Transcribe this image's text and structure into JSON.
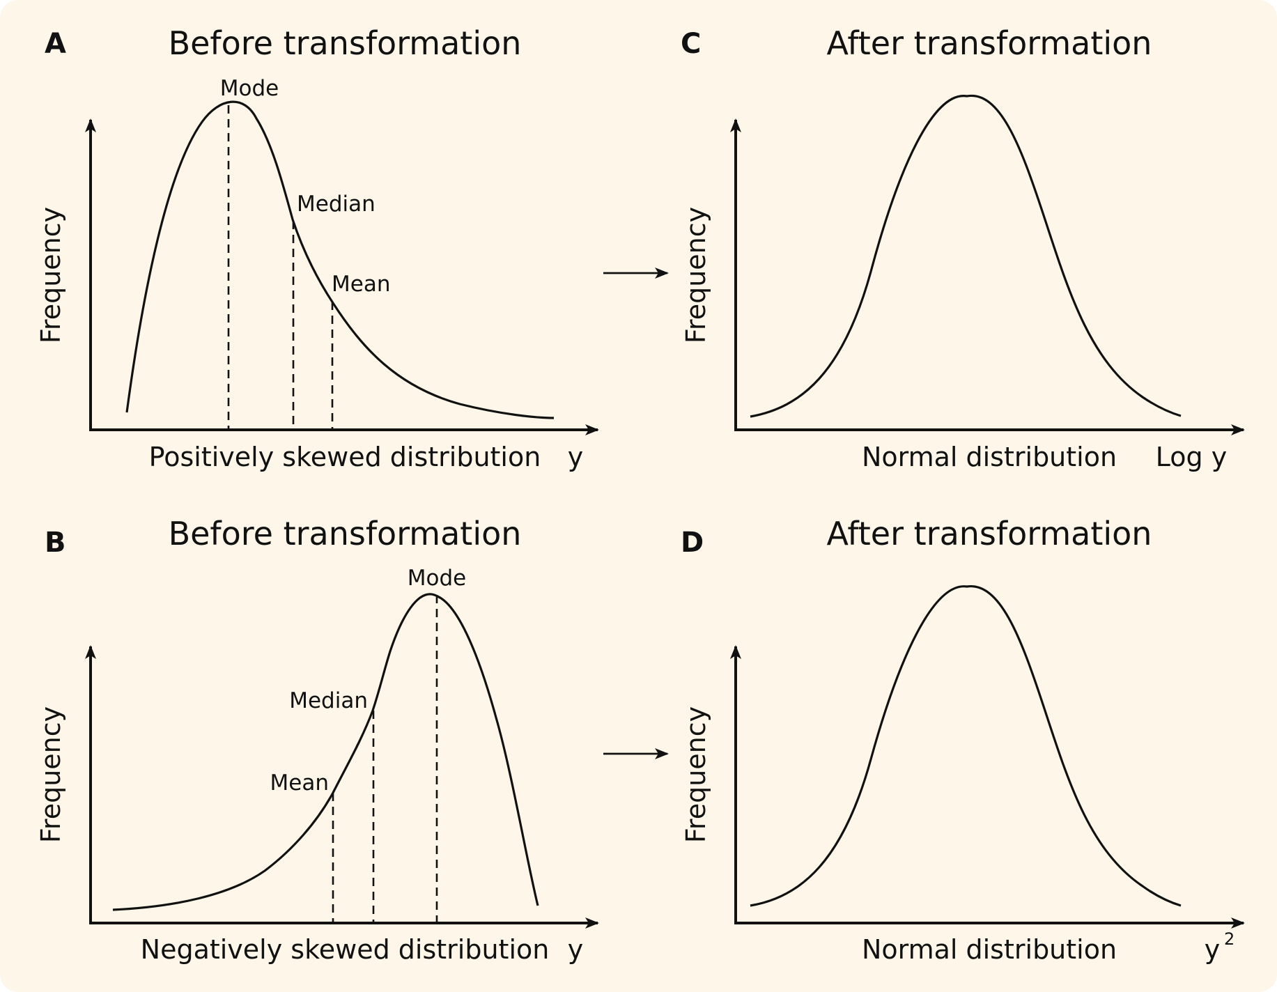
{
  "panels": {
    "A": {
      "letter": "A",
      "title": "Before transformation",
      "ylabel": "Frequency",
      "xlabel": "Positively skewed distribution",
      "xunit": "y",
      "mode": "Mode",
      "median": "Median",
      "mean": "Mean"
    },
    "B": {
      "letter": "B",
      "title": "Before transformation",
      "ylabel": "Frequency",
      "xlabel": "Negatively skewed distribution",
      "xunit": "y",
      "mode": "Mode",
      "median": "Median",
      "mean": "Mean"
    },
    "C": {
      "letter": "C",
      "title": "After transformation",
      "ylabel": "Frequency",
      "xlabel": "Normal distribution",
      "xunit": "Log y"
    },
    "D": {
      "letter": "D",
      "title": "After transformation",
      "ylabel": "Frequency",
      "xlabel": "Normal distribution",
      "xunit_base": "y",
      "xunit_exp": "2"
    }
  },
  "colors": {
    "background": "#fdf6e9",
    "ink": "#111111"
  }
}
